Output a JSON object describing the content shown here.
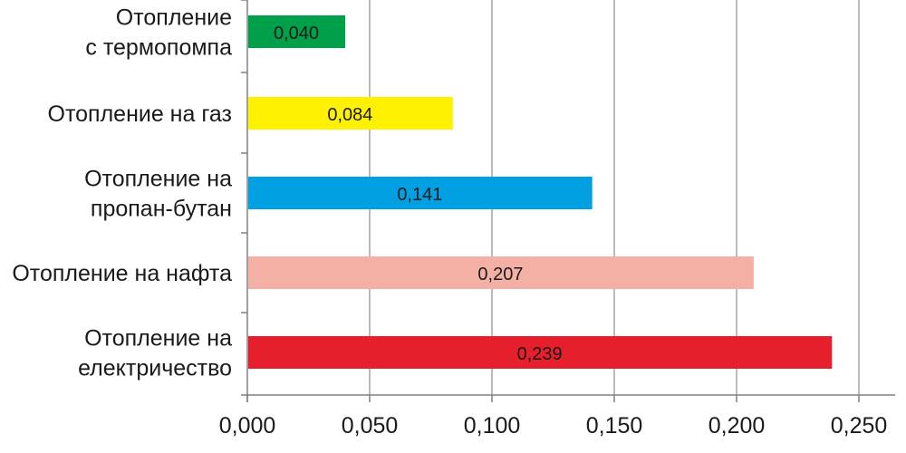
{
  "chart_data": {
    "type": "bar",
    "orientation": "horizontal",
    "categories": [
      [
        "Отопление",
        "с термопомпа"
      ],
      [
        "Отопление на газ"
      ],
      [
        "Отопление на",
        "пропан-бутан"
      ],
      [
        "Отопление на нафта"
      ],
      [
        "Отопление на",
        "електричество"
      ]
    ],
    "values": [
      0.04,
      0.084,
      0.141,
      0.207,
      0.239
    ],
    "data_labels": [
      "0,040",
      "0,084",
      "0,141",
      "0,207",
      "0,239"
    ],
    "colors": [
      "#00a04a",
      "#fff200",
      "#00a0e3",
      "#f4b0a5",
      "#e51f2b"
    ],
    "xlim": [
      0,
      0.25
    ],
    "x_ticks": [
      0,
      0.05,
      0.1,
      0.15,
      0.2,
      0.25
    ],
    "x_tick_labels": [
      "0,000",
      "0,050",
      "0,100",
      "0,150",
      "0,200",
      "0,250"
    ],
    "grid": true,
    "legend": "none",
    "title": "",
    "xlabel": "",
    "ylabel": ""
  }
}
